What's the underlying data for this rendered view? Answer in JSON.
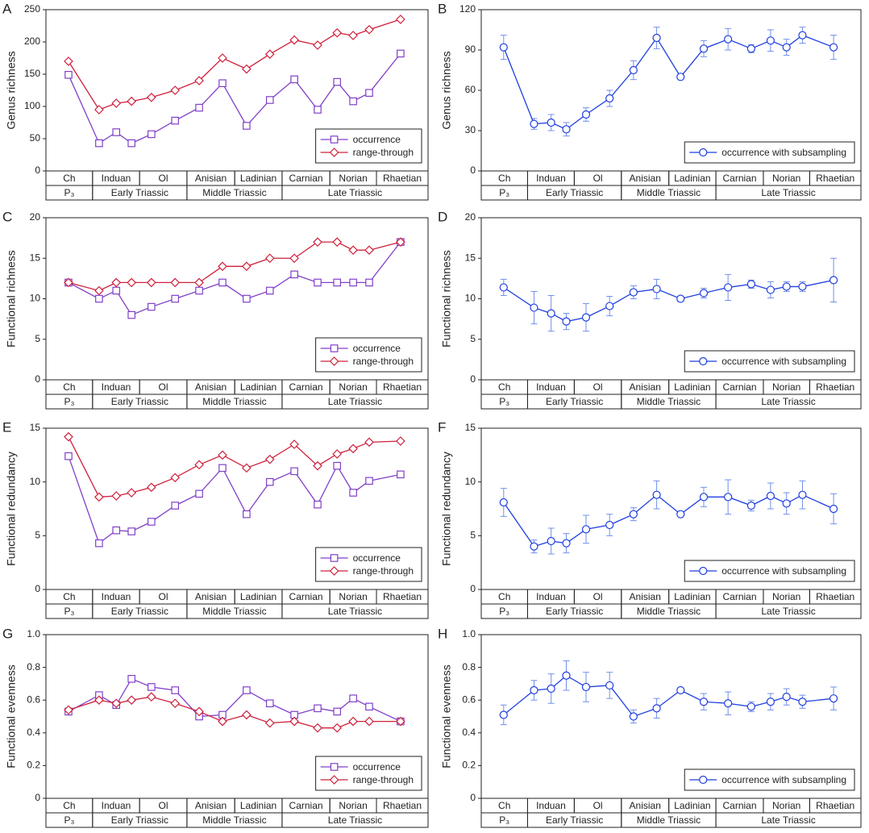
{
  "chart_data": [
    {
      "type": "line",
      "panel": "A",
      "y_label": "Genus richness",
      "ylim": [
        0,
        250
      ],
      "yticks": [
        0,
        50,
        100,
        150,
        200,
        250
      ],
      "legend": "lower right",
      "stages": [
        "Ch",
        "Induan",
        "Ol",
        "Anisian",
        "Ladinian",
        "Carnian",
        "Norian",
        "Rhaetian"
      ],
      "periods": [
        "P₃",
        "Early Triassic",
        "Middle Triassic",
        "Late Triassic"
      ],
      "series": [
        {
          "name": "occurrence",
          "color": "#8040c8",
          "marker": "square",
          "values": [
            149,
            43,
            60,
            43,
            57,
            78,
            98,
            136,
            70,
            110,
            142,
            95,
            138,
            108,
            121,
            182
          ]
        },
        {
          "name": "range-through",
          "color": "#d0203c",
          "marker": "diamond",
          "values": [
            170,
            95,
            105,
            108,
            114,
            125,
            140,
            175,
            158,
            181,
            203,
            195,
            214,
            210,
            219,
            235
          ]
        }
      ]
    },
    {
      "type": "line",
      "panel": "B",
      "y_label": "Genus richness",
      "ylim": [
        0,
        120
      ],
      "yticks": [
        0,
        30,
        60,
        90,
        120
      ],
      "legend": "lower right",
      "stages": [
        "Ch",
        "Induan",
        "Ol",
        "Anisian",
        "Ladinian",
        "Carnian",
        "Norian",
        "Rhaetian"
      ],
      "periods": [
        "P₃",
        "Early Triassic",
        "Middle Triassic",
        "Late Triassic"
      ],
      "series": [
        {
          "name": "occurrence with subsampling",
          "color": "#1f3fe0",
          "marker": "circle",
          "values": [
            92,
            35,
            36,
            31,
            42,
            54,
            75,
            99,
            70,
            91,
            98,
            91,
            97,
            92,
            101,
            92
          ],
          "errors": [
            9,
            4,
            6,
            5,
            5,
            6,
            7,
            8,
            0,
            6,
            8,
            3,
            8,
            6,
            6,
            9
          ]
        }
      ]
    },
    {
      "type": "line",
      "panel": "C",
      "y_label": "Functional richness",
      "ylim": [
        0,
        20
      ],
      "yticks": [
        0,
        5,
        10,
        15,
        20
      ],
      "legend": "lower right",
      "stages": [
        "Ch",
        "Induan",
        "Ol",
        "Anisian",
        "Ladinian",
        "Carnian",
        "Norian",
        "Rhaetian"
      ],
      "periods": [
        "P₃",
        "Early Triassic",
        "Middle Triassic",
        "Late Triassic"
      ],
      "series": [
        {
          "name": "occurrence",
          "color": "#8040c8",
          "marker": "square",
          "values": [
            12,
            10,
            11,
            8,
            9,
            10,
            11,
            12,
            10,
            11,
            13,
            12,
            12,
            12,
            12,
            17
          ]
        },
        {
          "name": "range-through",
          "color": "#d0203c",
          "marker": "diamond",
          "values": [
            12,
            11,
            12,
            12,
            12,
            12,
            12,
            14,
            14,
            15,
            15,
            17,
            17,
            16,
            16,
            17
          ]
        }
      ]
    },
    {
      "type": "line",
      "panel": "D",
      "y_label": "Functional richness",
      "ylim": [
        0,
        20
      ],
      "yticks": [
        0,
        5,
        10,
        15,
        20
      ],
      "legend": "lower right",
      "stages": [
        "Ch",
        "Induan",
        "Ol",
        "Anisian",
        "Ladinian",
        "Carnian",
        "Norian",
        "Rhaetian"
      ],
      "periods": [
        "P₃",
        "Early Triassic",
        "Middle Triassic",
        "Late Triassic"
      ],
      "series": [
        {
          "name": "occurrence with subsampling",
          "color": "#1f3fe0",
          "marker": "circle",
          "values": [
            11.4,
            8.9,
            8.2,
            7.2,
            7.7,
            9.1,
            10.8,
            11.2,
            10.0,
            10.7,
            11.4,
            11.8,
            11.1,
            11.5,
            11.5,
            12.3
          ],
          "errors": [
            1.0,
            2.0,
            2.2,
            1.0,
            1.7,
            1.2,
            0.8,
            1.2,
            0,
            0.6,
            1.6,
            0.5,
            1.0,
            0.6,
            0.6,
            2.7
          ]
        }
      ]
    },
    {
      "type": "line",
      "panel": "E",
      "y_label": "Functional redundancy",
      "ylim": [
        0,
        15
      ],
      "yticks": [
        0,
        5,
        10,
        15
      ],
      "legend": "lower right",
      "stages": [
        "Ch",
        "Induan",
        "Ol",
        "Anisian",
        "Ladinian",
        "Carnian",
        "Norian",
        "Rhaetian"
      ],
      "periods": [
        "P₃",
        "Early Triassic",
        "Middle Triassic",
        "Late Triassic"
      ],
      "series": [
        {
          "name": "occurrence",
          "color": "#8040c8",
          "marker": "square",
          "values": [
            12.4,
            4.3,
            5.5,
            5.4,
            6.3,
            7.8,
            8.9,
            11.3,
            7.0,
            10.0,
            11.0,
            7.9,
            11.5,
            9.0,
            10.1,
            10.7
          ]
        },
        {
          "name": "range-through",
          "color": "#d0203c",
          "marker": "diamond",
          "values": [
            14.2,
            8.6,
            8.7,
            9.0,
            9.5,
            10.4,
            11.6,
            12.5,
            11.3,
            12.1,
            13.5,
            11.5,
            12.6,
            13.1,
            13.7,
            13.8
          ]
        }
      ]
    },
    {
      "type": "line",
      "panel": "F",
      "y_label": "Functional redundancy",
      "ylim": [
        0,
        15
      ],
      "yticks": [
        0,
        5,
        10,
        15
      ],
      "legend": "lower right",
      "stages": [
        "Ch",
        "Induan",
        "Ol",
        "Anisian",
        "Ladinian",
        "Carnian",
        "Norian",
        "Rhaetian"
      ],
      "periods": [
        "P₃",
        "Early Triassic",
        "Middle Triassic",
        "Late Triassic"
      ],
      "series": [
        {
          "name": "occurrence with subsampling",
          "color": "#1f3fe0",
          "marker": "circle",
          "values": [
            8.1,
            4.0,
            4.5,
            4.3,
            5.6,
            6.0,
            7.0,
            8.8,
            7.0,
            8.6,
            8.6,
            7.8,
            8.7,
            8.0,
            8.8,
            7.5
          ],
          "errors": [
            1.3,
            0.6,
            1.2,
            0.9,
            1.3,
            1.0,
            0.6,
            1.3,
            0,
            0.9,
            1.6,
            0.5,
            1.2,
            1.0,
            1.3,
            1.4
          ]
        }
      ]
    },
    {
      "type": "line",
      "panel": "G",
      "y_label": "Functional evenness",
      "ylim": [
        0,
        1
      ],
      "yticks": [
        0,
        0.2,
        0.4,
        0.6,
        0.8,
        {
          "value": 1,
          "label": "1.0"
        }
      ],
      "legend": "lower right",
      "stages": [
        "Ch",
        "Induan",
        "Ol",
        "Anisian",
        "Ladinian",
        "Carnian",
        "Norian",
        "Rhaetian"
      ],
      "periods": [
        "P₃",
        "Early Triassic",
        "Middle Triassic",
        "Late Triassic"
      ],
      "series": [
        {
          "name": "occurrence",
          "color": "#8040c8",
          "marker": "square",
          "values": [
            0.53,
            0.63,
            0.57,
            0.73,
            0.68,
            0.66,
            0.5,
            0.51,
            0.66,
            0.58,
            0.51,
            0.55,
            0.53,
            0.61,
            0.56,
            0.47
          ]
        },
        {
          "name": "range-through",
          "color": "#d0203c",
          "marker": "diamond",
          "values": [
            0.54,
            0.6,
            0.58,
            0.6,
            0.62,
            0.58,
            0.53,
            0.47,
            0.51,
            0.46,
            0.47,
            0.43,
            0.43,
            0.47,
            0.47,
            0.47
          ]
        }
      ]
    },
    {
      "type": "line",
      "panel": "H",
      "y_label": "Functional evenness",
      "ylim": [
        0,
        1
      ],
      "yticks": [
        0,
        0.2,
        0.4,
        0.6,
        0.8,
        {
          "value": 1,
          "label": "1.0"
        }
      ],
      "legend": "lower right",
      "stages": [
        "Ch",
        "Induan",
        "Ol",
        "Anisian",
        "Ladinian",
        "Carnian",
        "Norian",
        "Rhaetian"
      ],
      "periods": [
        "P₃",
        "Early Triassic",
        "Middle Triassic",
        "Late Triassic"
      ],
      "series": [
        {
          "name": "occurrence with subsampling",
          "color": "#1f3fe0",
          "marker": "circle",
          "values": [
            0.51,
            0.66,
            0.67,
            0.75,
            0.68,
            0.69,
            0.5,
            0.55,
            0.66,
            0.59,
            0.58,
            0.56,
            0.59,
            0.62,
            0.59,
            0.61
          ],
          "errors": [
            0.06,
            0.06,
            0.09,
            0.09,
            0.09,
            0.08,
            0.04,
            0.06,
            0,
            0.05,
            0.07,
            0.03,
            0.05,
            0.05,
            0.04,
            0.07
          ]
        }
      ]
    }
  ]
}
